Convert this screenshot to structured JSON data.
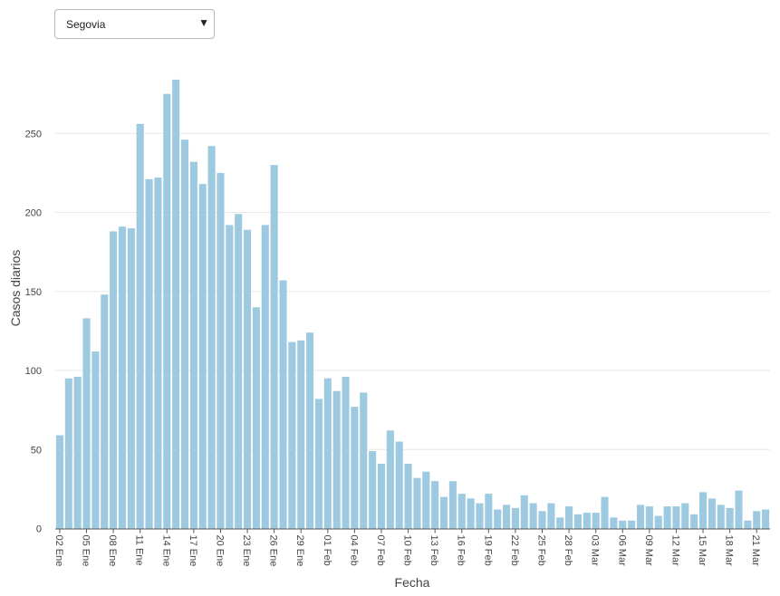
{
  "selector": {
    "selected": "Segovia",
    "arrow": "▼"
  },
  "chart_data": {
    "type": "bar",
    "xlabel": "Fecha",
    "ylabel": "Casos diarios",
    "ylim": [
      0,
      300
    ],
    "yticks": [
      0,
      50,
      100,
      150,
      200,
      250
    ],
    "grid": "horizontal",
    "bar_color": "#9ecae1",
    "first_date": "2021-01-02",
    "x_tick_labels": [
      "02 Ene",
      "05 Ene",
      "08 Ene",
      "11 Ene",
      "14 Ene",
      "17 Ene",
      "20 Ene",
      "23 Ene",
      "26 Ene",
      "29 Ene",
      "01 Feb",
      "04 Feb",
      "07 Feb",
      "10 Feb",
      "13 Feb",
      "16 Feb",
      "19 Feb",
      "22 Feb",
      "25 Feb",
      "28 Feb",
      "03 Mar",
      "06 Mar",
      "09 Mar",
      "12 Mar",
      "15 Mar",
      "18 Mar",
      "21 Mar"
    ],
    "values": [
      59,
      95,
      96,
      133,
      112,
      148,
      188,
      191,
      190,
      256,
      221,
      222,
      275,
      284,
      246,
      232,
      218,
      242,
      225,
      192,
      199,
      189,
      140,
      192,
      230,
      157,
      118,
      119,
      124,
      82,
      95,
      87,
      96,
      77,
      86,
      49,
      41,
      62,
      55,
      41,
      32,
      36,
      30,
      20,
      30,
      22,
      19,
      16,
      22,
      12,
      15,
      13,
      21,
      16,
      11,
      16,
      7,
      14,
      9,
      10,
      10,
      20,
      7,
      5,
      5,
      15,
      14,
      8,
      14,
      14,
      16,
      9,
      23,
      19,
      15,
      13,
      24,
      5,
      11,
      12
    ]
  }
}
